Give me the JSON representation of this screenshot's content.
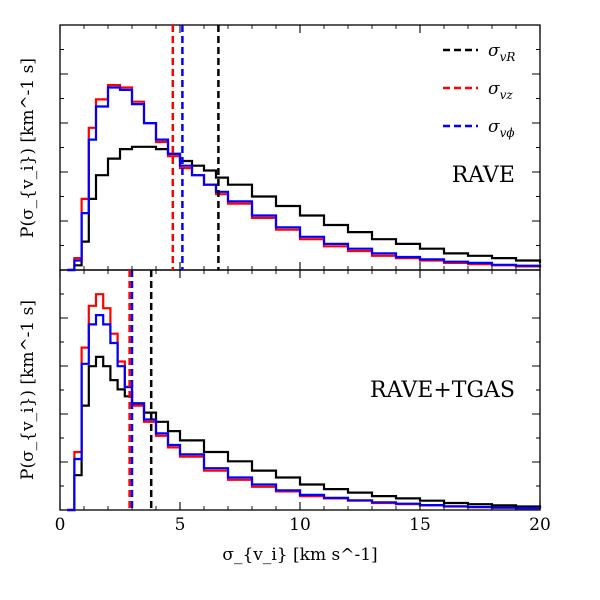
{
  "chart_data": [
    {
      "type": "histogram-step",
      "panel_label": "RAVE",
      "ylabel": "P(σ_{v_i}) [km^-1 s]",
      "xlim": [
        0,
        20
      ],
      "ylim": [
        0,
        1.0
      ],
      "legend": {
        "placement": "top-right",
        "entries": [
          {
            "series": "R",
            "label_main": "σ",
            "label_sub": "vR"
          },
          {
            "series": "z",
            "label_main": "σ",
            "label_sub": "vz"
          },
          {
            "series": "phi",
            "label_main": "σ",
            "label_sub": "vϕ"
          }
        ]
      },
      "vlines": [
        {
          "series": "R",
          "x": 6.6
        },
        {
          "series": "z",
          "x": 4.7
        },
        {
          "series": "phi",
          "x": 5.1
        }
      ],
      "series": [
        {
          "name": "σ_vR",
          "key": "R",
          "x": [
            0.3,
            0.6,
            0.9,
            1.2,
            1.5,
            2,
            2.5,
            3,
            3.5,
            4,
            4.5,
            5,
            5.5,
            6,
            6.5,
            7,
            8,
            9,
            10,
            11,
            12,
            13,
            14,
            15,
            16,
            17,
            18,
            19,
            20
          ],
          "y": [
            0.0,
            0.02,
            0.12,
            0.3,
            0.4,
            0.47,
            0.51,
            0.52,
            0.52,
            0.51,
            0.49,
            0.46,
            0.44,
            0.42,
            0.39,
            0.36,
            0.31,
            0.27,
            0.23,
            0.19,
            0.16,
            0.13,
            0.11,
            0.09,
            0.07,
            0.06,
            0.05,
            0.04,
            0.03
          ]
        },
        {
          "name": "σ_vz",
          "key": "z",
          "x": [
            0.3,
            0.6,
            0.9,
            1.2,
            1.5,
            2,
            2.5,
            3,
            3.5,
            4,
            4.5,
            5,
            5.5,
            6,
            6.5,
            7,
            8,
            9,
            10,
            11,
            12,
            13,
            14,
            15,
            16,
            17,
            18,
            19,
            20
          ],
          "y": [
            0.0,
            0.05,
            0.3,
            0.6,
            0.72,
            0.78,
            0.77,
            0.71,
            0.62,
            0.54,
            0.48,
            0.43,
            0.4,
            0.36,
            0.32,
            0.28,
            0.22,
            0.17,
            0.13,
            0.1,
            0.08,
            0.06,
            0.05,
            0.04,
            0.03,
            0.025,
            0.02,
            0.015,
            0.01
          ]
        },
        {
          "name": "σ_vϕ",
          "key": "phi",
          "x": [
            0.3,
            0.6,
            0.9,
            1.2,
            1.5,
            2,
            2.5,
            3,
            3.5,
            4,
            4.5,
            5,
            5.5,
            6,
            6.5,
            7,
            8,
            9,
            10,
            11,
            12,
            13,
            14,
            15,
            16,
            17,
            18,
            19,
            20
          ],
          "y": [
            0.0,
            0.04,
            0.24,
            0.55,
            0.69,
            0.77,
            0.76,
            0.7,
            0.62,
            0.55,
            0.49,
            0.44,
            0.4,
            0.36,
            0.33,
            0.29,
            0.23,
            0.18,
            0.14,
            0.11,
            0.09,
            0.07,
            0.055,
            0.045,
            0.035,
            0.03,
            0.022,
            0.018,
            0.012
          ]
        }
      ]
    },
    {
      "type": "histogram-step",
      "panel_label": "RAVE+TGAS",
      "ylabel": "P(σ_{v_i}) [km^-1 s]",
      "xlabel": "σ_{v_i} [km s^-1]",
      "xlim": [
        0,
        20
      ],
      "ylim": [
        0,
        1.0
      ],
      "xticks": [
        0,
        5,
        10,
        15,
        20
      ],
      "vlines": [
        {
          "series": "R",
          "x": 3.8
        },
        {
          "series": "z",
          "x": 2.9
        },
        {
          "series": "phi",
          "x": 3.0
        }
      ],
      "series": [
        {
          "name": "σ_vR",
          "key": "R",
          "x": [
            0.3,
            0.6,
            0.9,
            1.2,
            1.5,
            1.8,
            2.1,
            2.4,
            2.7,
            3,
            3.5,
            4,
            4.5,
            5,
            6,
            7,
            8,
            9,
            10,
            11,
            12,
            13,
            14,
            15,
            16,
            17,
            18,
            19,
            20
          ],
          "y": [
            0.0,
            0.15,
            0.45,
            0.62,
            0.66,
            0.62,
            0.56,
            0.52,
            0.49,
            0.46,
            0.42,
            0.38,
            0.34,
            0.3,
            0.25,
            0.21,
            0.17,
            0.14,
            0.11,
            0.09,
            0.075,
            0.06,
            0.05,
            0.04,
            0.03,
            0.025,
            0.02,
            0.015,
            0.01
          ]
        },
        {
          "name": "σ_vz",
          "key": "z",
          "x": [
            0.3,
            0.6,
            0.9,
            1.2,
            1.5,
            1.8,
            2.1,
            2.4,
            2.7,
            3,
            3.5,
            4,
            4.5,
            5,
            6,
            7,
            8,
            9,
            10,
            11,
            12,
            13,
            14,
            15,
            16,
            17,
            18,
            19,
            20
          ],
          "y": [
            0.0,
            0.25,
            0.7,
            0.88,
            0.93,
            0.87,
            0.76,
            0.64,
            0.53,
            0.45,
            0.38,
            0.32,
            0.27,
            0.23,
            0.17,
            0.13,
            0.1,
            0.08,
            0.06,
            0.05,
            0.04,
            0.03,
            0.025,
            0.02,
            0.015,
            0.012,
            0.01,
            0.008,
            0.006
          ]
        },
        {
          "name": "σ_vϕ",
          "key": "phi",
          "x": [
            0.3,
            0.6,
            0.9,
            1.2,
            1.5,
            1.8,
            2.1,
            2.4,
            2.7,
            3,
            3.5,
            4,
            4.5,
            5,
            6,
            7,
            8,
            9,
            10,
            11,
            12,
            13,
            14,
            15,
            16,
            17,
            18,
            19,
            20
          ],
          "y": [
            0.0,
            0.22,
            0.63,
            0.8,
            0.84,
            0.8,
            0.72,
            0.62,
            0.53,
            0.46,
            0.39,
            0.33,
            0.28,
            0.24,
            0.18,
            0.14,
            0.11,
            0.085,
            0.065,
            0.052,
            0.042,
            0.033,
            0.027,
            0.021,
            0.016,
            0.013,
            0.01,
            0.008,
            0.006
          ]
        }
      ]
    }
  ],
  "colors": {
    "R": "#000000",
    "z": "#ff0000",
    "phi": "#0000ff"
  }
}
